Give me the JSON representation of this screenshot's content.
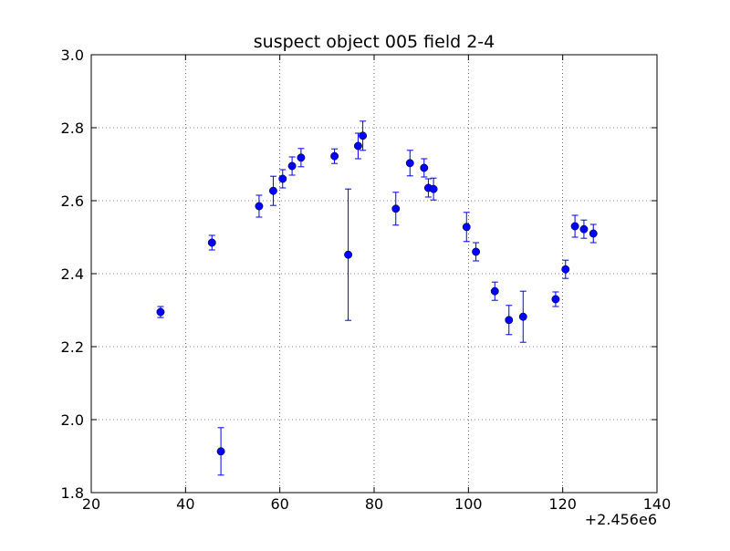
{
  "chart_data": {
    "type": "scatter",
    "title": "suspect object 005 field 2-4",
    "xlabel": "",
    "ylabel": "",
    "x_offset_label": "+2.456e6",
    "xlim": [
      20,
      140
    ],
    "ylim": [
      3.0,
      1.8
    ],
    "y_inverted": true,
    "grid": true,
    "x_ticks": [
      "20",
      "40",
      "60",
      "80",
      "100",
      "120",
      "140"
    ],
    "y_ticks": [
      "1.8",
      "2.0",
      "2.2",
      "2.4",
      "2.6",
      "2.8",
      "3.0"
    ],
    "marker_color": "#0000ff",
    "series": [
      {
        "points": [
          {
            "x": 34.7,
            "y": 2.295,
            "err": 0.015
          },
          {
            "x": 45.6,
            "y": 2.485,
            "err": 0.02
          },
          {
            "x": 47.5,
            "y": 1.913,
            "err": 0.065
          },
          {
            "x": 55.6,
            "y": 2.585,
            "err": 0.03
          },
          {
            "x": 58.6,
            "y": 2.627,
            "err": 0.04
          },
          {
            "x": 60.6,
            "y": 2.66,
            "err": 0.025
          },
          {
            "x": 62.6,
            "y": 2.695,
            "err": 0.025
          },
          {
            "x": 64.5,
            "y": 2.718,
            "err": 0.025
          },
          {
            "x": 71.6,
            "y": 2.722,
            "err": 0.02
          },
          {
            "x": 74.5,
            "y": 2.452,
            "err": 0.18
          },
          {
            "x": 76.6,
            "y": 2.75,
            "err": 0.035
          },
          {
            "x": 77.6,
            "y": 2.778,
            "err": 0.04
          },
          {
            "x": 84.6,
            "y": 2.578,
            "err": 0.045
          },
          {
            "x": 87.6,
            "y": 2.703,
            "err": 0.035
          },
          {
            "x": 90.6,
            "y": 2.69,
            "err": 0.025
          },
          {
            "x": 91.5,
            "y": 2.635,
            "err": 0.025
          },
          {
            "x": 92.6,
            "y": 2.632,
            "err": 0.03
          },
          {
            "x": 99.6,
            "y": 2.528,
            "err": 0.04
          },
          {
            "x": 101.6,
            "y": 2.46,
            "err": 0.025
          },
          {
            "x": 105.6,
            "y": 2.352,
            "err": 0.025
          },
          {
            "x": 108.6,
            "y": 2.273,
            "err": 0.04
          },
          {
            "x": 111.6,
            "y": 2.282,
            "err": 0.07
          },
          {
            "x": 118.5,
            "y": 2.33,
            "err": 0.02
          },
          {
            "x": 120.6,
            "y": 2.412,
            "err": 0.025
          },
          {
            "x": 122.6,
            "y": 2.53,
            "err": 0.03
          },
          {
            "x": 124.5,
            "y": 2.522,
            "err": 0.025
          },
          {
            "x": 126.5,
            "y": 2.51,
            "err": 0.025
          }
        ]
      }
    ]
  }
}
